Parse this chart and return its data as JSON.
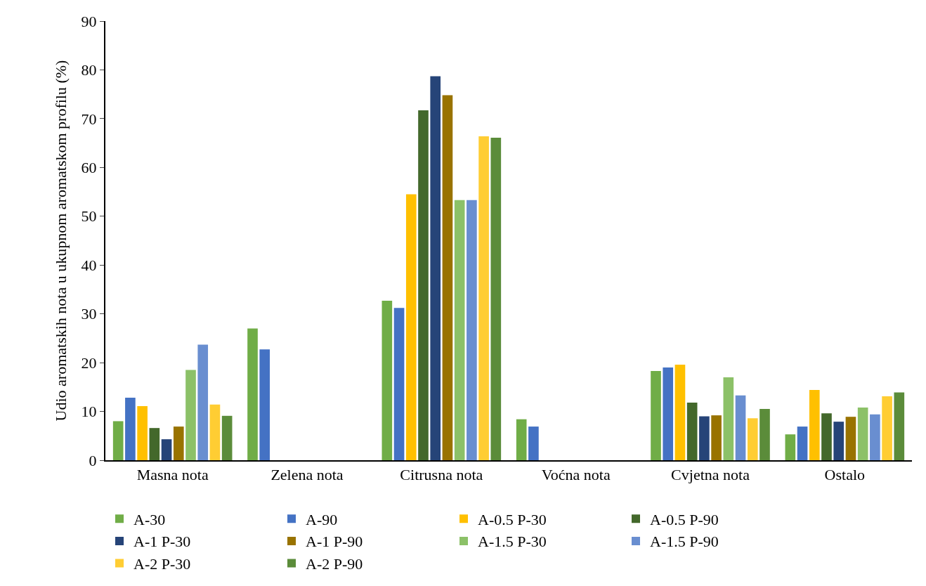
{
  "chart_data": {
    "type": "bar",
    "ylabel": "Udio aromatskih nota u ukupnom aromatskom profilu (%)",
    "categories": [
      "Masna nota",
      "Zelena nota",
      "Citrusna nota",
      "Voćna nota",
      "Cvjetna nota",
      "Ostalo"
    ],
    "series": [
      {
        "name": "A-30",
        "color": "#70ad47",
        "values": [
          8.0,
          27.0,
          32.7,
          8.4,
          18.3,
          5.3
        ]
      },
      {
        "name": "A-90",
        "color": "#4472c4",
        "values": [
          12.8,
          22.7,
          31.2,
          6.9,
          19.0,
          6.9
        ]
      },
      {
        "name": "A-0.5 P-30",
        "color": "#ffc000",
        "values": [
          11.1,
          0,
          54.5,
          0,
          19.6,
          14.4
        ]
      },
      {
        "name": "A-0.5 P-90",
        "color": "#43682b",
        "values": [
          6.6,
          0,
          71.7,
          0,
          11.8,
          9.6
        ]
      },
      {
        "name": "A-1 P-30",
        "color": "#264478",
        "values": [
          4.3,
          0,
          78.7,
          0,
          9.0,
          7.9
        ]
      },
      {
        "name": "A-1 P-90",
        "color": "#997300",
        "values": [
          6.9,
          0,
          74.8,
          0,
          9.2,
          8.9
        ]
      },
      {
        "name": "A-1.5 P-30",
        "color": "#8cc168",
        "values": [
          18.5,
          0,
          53.3,
          0,
          17.0,
          10.8
        ]
      },
      {
        "name": "A-1.5 P-90",
        "color": "#698ed0",
        "values": [
          23.7,
          0,
          53.3,
          0,
          13.3,
          9.4
        ]
      },
      {
        "name": "A-2 P-30",
        "color": "#ffcd33",
        "values": [
          11.4,
          0,
          66.4,
          0,
          8.6,
          13.1
        ]
      },
      {
        "name": "A-2 P-90",
        "color": "#5b8c3a",
        "values": [
          9.1,
          0,
          66.1,
          0,
          10.5,
          13.9
        ]
      }
    ],
    "ylim": [
      0,
      90
    ],
    "yticks": [
      0,
      10,
      20,
      30,
      40,
      50,
      60,
      70,
      80,
      90
    ],
    "legend": "bottom"
  }
}
